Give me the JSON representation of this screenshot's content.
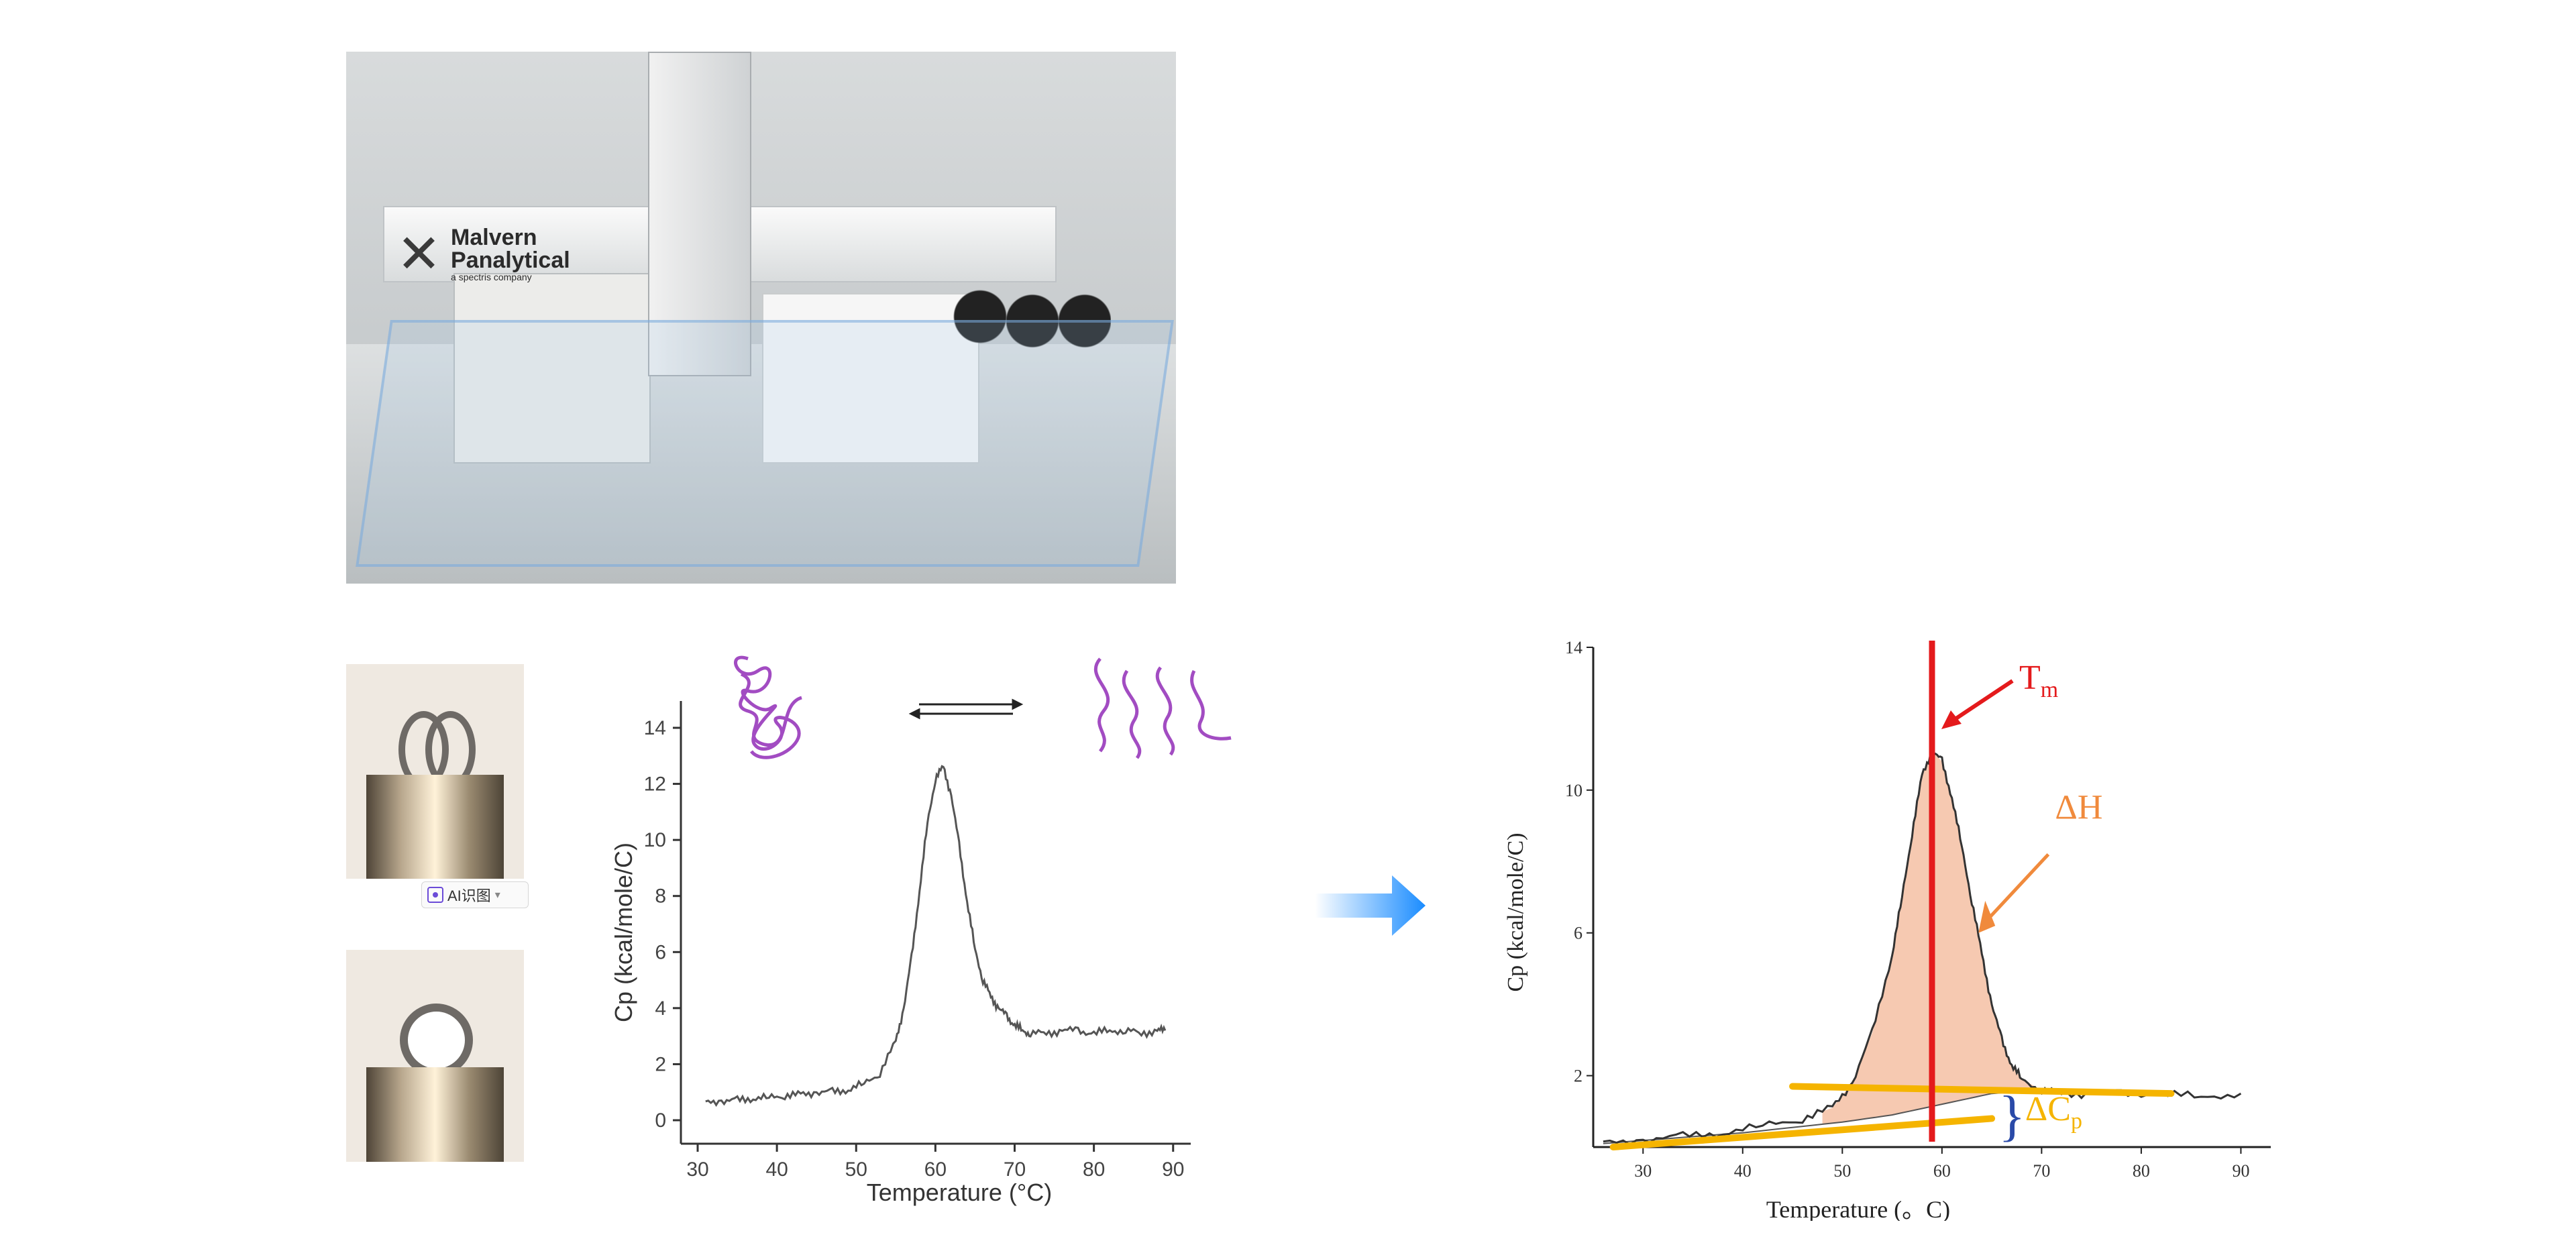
{
  "photo": {
    "brand_line1": "Malvern",
    "brand_line2": "Panalytical",
    "brand_tagline": "a spectris company"
  },
  "ai_badge": {
    "label": "AI识图"
  },
  "arrow_color": "#1a8cff",
  "chart_data": [
    {
      "type": "line",
      "xlabel": "Temperature (°C)",
      "ylabel": "Cp (kcal/mole/C)",
      "xlim": [
        30,
        90
      ],
      "ylim": [
        0,
        14
      ],
      "xticks": [
        30,
        40,
        50,
        60,
        70,
        80,
        90
      ],
      "yticks": [
        0,
        2,
        4,
        6,
        8,
        10,
        12,
        14
      ],
      "series": [
        {
          "x": [
            31,
            33,
            35,
            37,
            39,
            41,
            43,
            45,
            47,
            49,
            51,
            53,
            55,
            56,
            57,
            58,
            59,
            60,
            61,
            62,
            63,
            64,
            65,
            66,
            67,
            68,
            69,
            70,
            71,
            72,
            74,
            76,
            78,
            80,
            82,
            84,
            86,
            88,
            89
          ],
          "values": [
            0.6,
            0.7,
            0.7,
            0.8,
            0.8,
            0.9,
            0.9,
            1.0,
            1.0,
            1.1,
            1.3,
            1.7,
            2.8,
            4.0,
            5.8,
            8.2,
            10.6,
            12.2,
            12.6,
            11.6,
            9.8,
            7.8,
            6.1,
            5.0,
            4.4,
            4.0,
            3.7,
            3.4,
            3.2,
            3.1,
            3.1,
            3.2,
            3.2,
            3.1,
            3.2,
            3.2,
            3.1,
            3.2,
            3.2
          ],
          "color": "#555555"
        }
      ],
      "grid": false,
      "annotations": {
        "state_arrow": "⇄"
      }
    },
    {
      "type": "line",
      "xlabel": "Temperature (。C)",
      "ylabel": "Cp (kcal/mole/C)",
      "xlim": [
        25,
        93
      ],
      "ylim": [
        0,
        14
      ],
      "xticks": [
        30,
        40,
        50,
        60,
        70,
        80,
        90
      ],
      "yticks": [
        2,
        6,
        10,
        14
      ],
      "series": [
        {
          "x": [
            26,
            30,
            34,
            38,
            42,
            46,
            49,
            51,
            53,
            55,
            56,
            57,
            58,
            59,
            60,
            61,
            62,
            63,
            64,
            65,
            66,
            67,
            68,
            70,
            72,
            75,
            78,
            82,
            86,
            90
          ],
          "values": [
            0.1,
            0.2,
            0.3,
            0.4,
            0.6,
            0.8,
            1.1,
            1.8,
            3.2,
            5.4,
            7.0,
            8.8,
            10.4,
            11.1,
            10.8,
            9.8,
            8.4,
            6.9,
            5.4,
            4.0,
            3.0,
            2.3,
            1.9,
            1.6,
            1.5,
            1.5,
            1.5,
            1.5,
            1.4,
            1.5
          ],
          "color": "#333333"
        }
      ],
      "baseline": {
        "x": [
          26,
          40,
          50,
          55,
          60,
          65,
          70
        ],
        "values": [
          0.1,
          0.4,
          0.7,
          0.9,
          1.2,
          1.5,
          1.6
        ]
      },
      "tm_x": 59,
      "pre_line": {
        "x": [
          27,
          65
        ],
        "values": [
          0.0,
          0.8
        ]
      },
      "post_line": {
        "x": [
          45,
          83
        ],
        "values": [
          1.7,
          1.5
        ]
      },
      "annotations": {
        "tm": "T",
        "tm_sub": "m",
        "dh": "ΔH",
        "dcp": "ΔC",
        "dcp_sub": "p",
        "brace": "}"
      },
      "colors": {
        "tm": "#e41a1c",
        "dh": "#f08a3c",
        "fill": "#f5c0a3",
        "lines": "#f5b400",
        "brace": "#2a4aa8"
      }
    }
  ]
}
